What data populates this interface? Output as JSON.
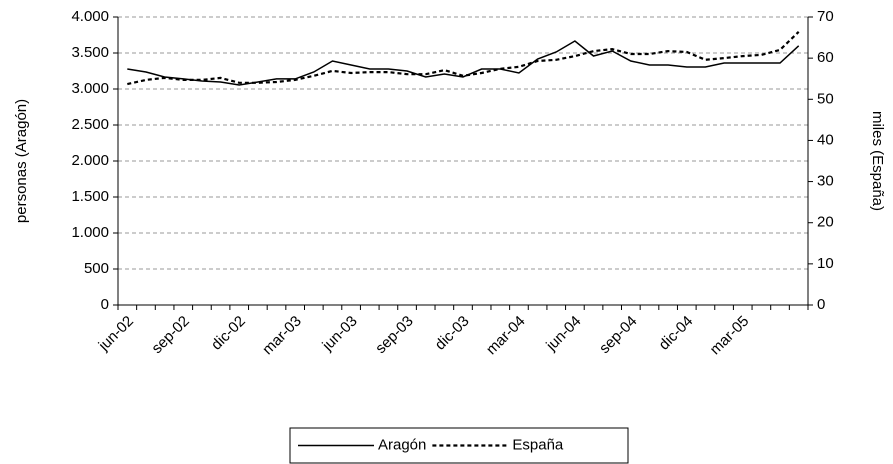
{
  "chart_data": {
    "type": "line",
    "categories": [
      "jun-02",
      null,
      null,
      "sep-02",
      null,
      null,
      "dic-02",
      null,
      null,
      "mar-03",
      null,
      null,
      "jun-03",
      null,
      null,
      "sep-03",
      null,
      null,
      "dic-03",
      null,
      null,
      "mar-04",
      null,
      null,
      "jun-04",
      null,
      null,
      "sep-04",
      null,
      null,
      "dic-04",
      null,
      null,
      "mar-05",
      null,
      null,
      null
    ],
    "y_label": "personas (Aragón)",
    "y2_label": "miles (España)",
    "ylim": [
      0,
      4000
    ],
    "yticks": [
      0,
      500,
      {
        "value": 1000,
        "label": "1.000"
      },
      {
        "value": 1500,
        "label": "1.500"
      },
      {
        "value": 2000,
        "label": "2.000"
      },
      {
        "value": 2500,
        "label": "2.500"
      },
      {
        "value": 3000,
        "label": "3.000"
      },
      {
        "value": 3500,
        "label": "3.500"
      },
      {
        "value": 4000,
        "label": "4.000"
      }
    ],
    "y2lim": [
      0,
      70
    ],
    "y2ticks": [
      0,
      10,
      20,
      30,
      40,
      50,
      60,
      70
    ],
    "grid": true,
    "legend": "bottom",
    "series": [
      {
        "name": "Aragón",
        "color": "#000000",
        "dash": "solid",
        "axis": "y",
        "values": [
          3278,
          3236,
          3167,
          3140,
          3111,
          3097,
          3055,
          3097,
          3140,
          3140,
          3236,
          3389,
          3333,
          3278,
          3278,
          3250,
          3167,
          3208,
          3167,
          3278,
          3278,
          3222,
          3417,
          3514,
          3667,
          3458,
          3528,
          3389,
          3333,
          3333,
          3306,
          3306,
          3361,
          3361,
          3361,
          3361,
          3600
        ]
      },
      {
        "name": "España",
        "color": "#000000",
        "dash": "dashed",
        "axis": "y2",
        "values": [
          53.7,
          54.7,
          55.2,
          54.7,
          54.7,
          55.2,
          54.0,
          54.0,
          54.2,
          54.7,
          55.7,
          56.9,
          56.4,
          56.6,
          56.6,
          56.1,
          56.1,
          57.1,
          55.7,
          56.4,
          57.4,
          57.9,
          59.3,
          59.6,
          60.5,
          61.7,
          62.2,
          61.0,
          61.0,
          61.7,
          61.5,
          59.6,
          60.0,
          60.5,
          60.8,
          62.0,
          66.4
        ]
      }
    ]
  }
}
